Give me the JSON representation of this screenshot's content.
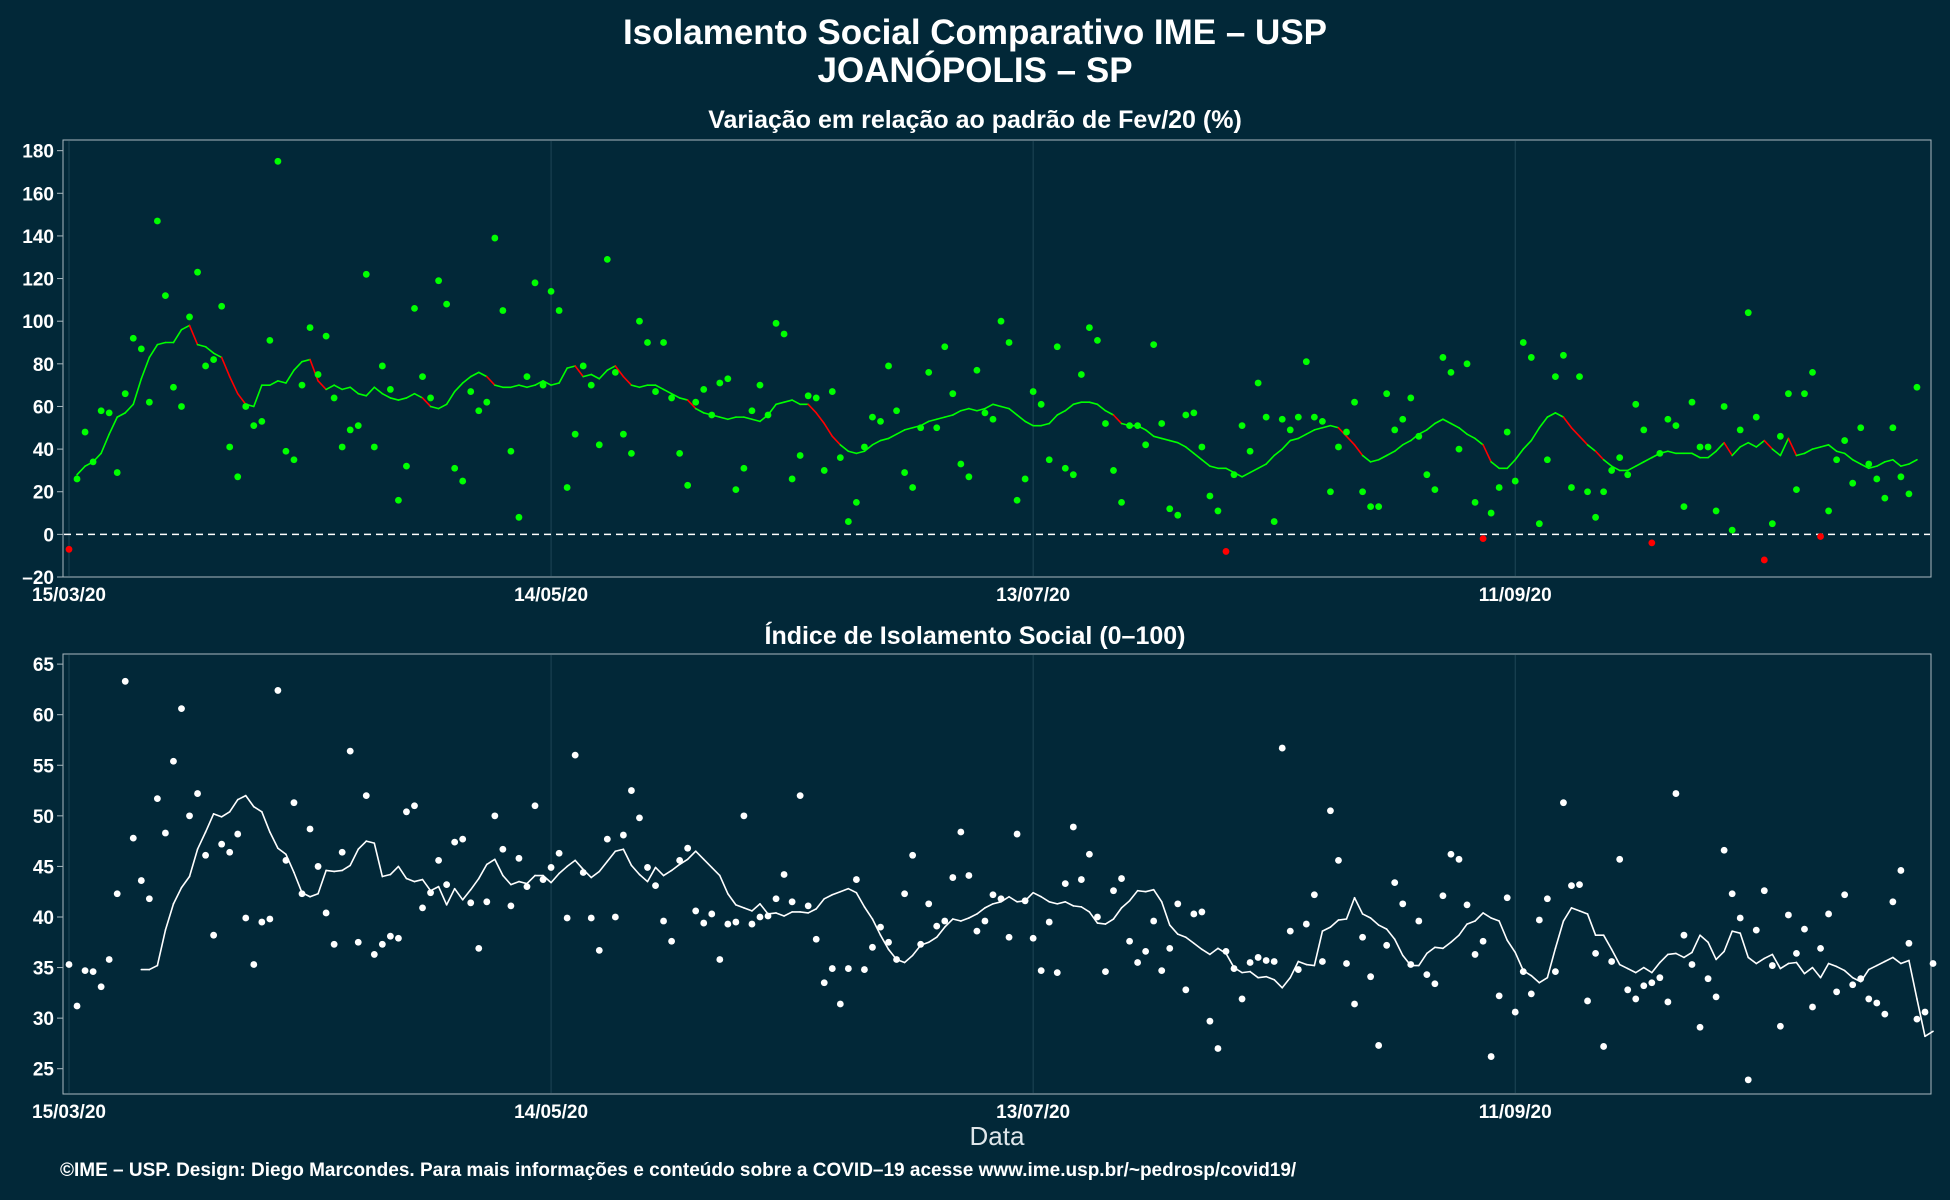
{
  "title": "Isolamento Social Comparativo IME – USP",
  "subtitle": "JOANÓPOLIS – SP",
  "xlabel": "Data",
  "caption": "©IME – USP. Design: Diego Marcondes. Para mais informações e conteúdo sobre a COVID–19 acesse www.ime.usp.br/~pedrosp/covid19/",
  "colors": {
    "background": "#022838",
    "grid": "#1f4656",
    "panel_border": "#a9b8bf",
    "green": "#00ff00",
    "red": "#ff0000",
    "white": "#ffffff"
  },
  "chart_data": [
    {
      "type": "scatter",
      "title": "Variação em relação ao padrão de Fev/20 (%)",
      "xlabel": "",
      "ylabel": "",
      "x_start": "2020-03-15",
      "x_end": "2020-11-01",
      "ylim": [
        -20,
        185
      ],
      "y_ticks": [
        -20,
        0,
        20,
        40,
        60,
        80,
        100,
        120,
        140,
        160,
        180
      ],
      "y_tick_labels": [
        "–20",
        "0",
        "20",
        "40",
        "60",
        "80",
        "100",
        "120",
        "140",
        "160",
        "180"
      ],
      "x_ticks": [
        "2020-03-15",
        "2020-05-14",
        "2020-07-13",
        "2020-09-11"
      ],
      "x_tick_labels": [
        "15/03/20",
        "14/05/20",
        "13/07/20",
        "11/09/20"
      ],
      "reference_line": 0,
      "grid": "vertical lines at x ticks",
      "series": [
        {
          "kind": "daily points",
          "color_rule": "green when ≥ 0, red when < 0",
          "values": [
            -7,
            26,
            48,
            34,
            58,
            57,
            29,
            66,
            92,
            87,
            62,
            147,
            112,
            69,
            60,
            102,
            123,
            79,
            82,
            107,
            41,
            27,
            60,
            51,
            53,
            91,
            175,
            39,
            35,
            70,
            97,
            75,
            93,
            64,
            41,
            49,
            51,
            122,
            41,
            79,
            68,
            16,
            32,
            106,
            74,
            64,
            119,
            108,
            31,
            25,
            67,
            58,
            62,
            139,
            105,
            39,
            8,
            74,
            118,
            70,
            114,
            105,
            22,
            47,
            79,
            70,
            42,
            129,
            76,
            47,
            38,
            100,
            90,
            67,
            90,
            64,
            38,
            23,
            62,
            68,
            56,
            71,
            73,
            21,
            31,
            58,
            70,
            56,
            99,
            94,
            26,
            37,
            65,
            64,
            30,
            67,
            36,
            6,
            15,
            41,
            55,
            53,
            79,
            58,
            29,
            22,
            50,
            76,
            50,
            88,
            66,
            33,
            27,
            77,
            57,
            54,
            100,
            90,
            16,
            26,
            67,
            61,
            35,
            88,
            31,
            28,
            75,
            97,
            91,
            52,
            30,
            15,
            51,
            51,
            42,
            89,
            52,
            12,
            9,
            56,
            57,
            41,
            18,
            11,
            -8,
            28,
            51,
            39,
            71,
            55,
            6,
            54,
            49,
            55,
            81,
            55,
            53,
            20,
            41,
            48,
            62,
            20,
            13,
            13,
            66,
            49,
            54,
            64,
            46,
            28,
            21,
            83,
            76,
            40,
            80,
            15,
            -2,
            10,
            22,
            48,
            25,
            90,
            83,
            5,
            35,
            74,
            84,
            22,
            74,
            20,
            8,
            20,
            30,
            36,
            28,
            61,
            49,
            -4,
            38,
            54,
            51,
            13,
            62,
            41,
            41,
            11,
            60,
            2,
            49,
            104,
            55,
            -12,
            5,
            46,
            66,
            21,
            66,
            76,
            -1,
            11,
            35,
            44,
            24,
            50,
            33,
            26,
            17,
            50,
            27,
            19,
            69
          ]
        },
        {
          "kind": "7-day moving average line",
          "color_rule": "green, red on a downward move",
          "values": [
            28,
            32,
            34,
            38,
            47,
            55,
            57,
            61,
            73,
            83,
            89,
            90,
            90,
            96,
            98,
            89,
            88,
            85,
            83,
            74,
            66,
            61,
            60,
            70,
            70,
            72,
            71,
            77,
            81,
            82,
            72,
            68,
            70,
            68,
            69,
            66,
            65,
            69,
            66,
            64,
            63,
            64,
            66,
            64,
            60,
            59,
            61,
            67,
            71,
            74,
            76,
            74,
            70,
            69,
            69,
            70,
            69,
            70,
            72,
            70,
            71,
            78,
            79,
            74,
            75,
            73,
            77,
            79,
            74,
            70,
            69,
            70,
            70,
            68,
            66,
            64,
            63,
            59,
            57,
            56,
            55,
            54,
            55,
            55,
            54,
            53,
            56,
            61,
            62,
            63,
            61,
            61,
            57,
            52,
            46,
            42,
            39,
            38,
            39,
            42,
            44,
            45,
            47,
            49,
            50,
            51,
            53,
            54,
            55,
            56,
            58,
            59,
            58,
            59,
            61,
            60,
            59,
            56,
            53,
            51,
            51,
            52,
            56,
            58,
            61,
            62,
            62,
            61,
            58,
            56,
            52,
            51,
            51,
            49,
            46,
            45,
            44,
            43,
            41,
            38,
            35,
            32,
            31,
            31,
            29,
            27,
            29,
            31,
            33,
            37,
            40,
            44,
            45,
            47,
            49,
            50,
            51,
            50,
            46,
            42,
            37,
            34,
            35,
            37,
            39,
            42,
            44,
            47,
            49,
            52,
            54,
            52,
            50,
            47,
            45,
            42,
            34,
            31,
            31,
            35,
            40,
            44,
            50,
            55,
            57,
            55,
            50,
            46,
            42,
            39,
            35,
            32,
            30,
            30,
            32,
            34,
            36,
            38,
            39,
            38,
            38,
            38,
            36,
            36,
            39,
            43,
            37,
            41,
            43,
            41,
            44,
            40,
            37,
            45,
            37,
            38,
            40,
            41,
            42,
            39,
            38,
            35,
            33,
            31,
            32,
            34,
            35,
            32,
            33,
            35
          ]
        }
      ]
    },
    {
      "type": "scatter",
      "title": "Índice de Isolamento Social (0–100)",
      "xlabel": "Data",
      "ylabel": "",
      "x_start": "2020-03-15",
      "x_end": "2020-11-01",
      "ylim": [
        22.5,
        66
      ],
      "y_ticks": [
        25,
        30,
        35,
        40,
        45,
        50,
        55,
        60,
        65
      ],
      "y_tick_labels": [
        "25",
        "30",
        "35",
        "40",
        "45",
        "50",
        "55",
        "60",
        "65"
      ],
      "x_ticks": [
        "2020-03-15",
        "2020-05-14",
        "2020-07-13",
        "2020-09-11"
      ],
      "x_tick_labels": [
        "15/03/20",
        "14/05/20",
        "13/07/20",
        "11/09/20"
      ],
      "grid": "vertical lines at x ticks",
      "series": [
        {
          "kind": "daily points",
          "color": "white",
          "values": [
            35.3,
            31.2,
            34.7,
            34.6,
            33.1,
            35.8,
            42.3,
            63.3,
            47.8,
            43.6,
            41.8,
            51.7,
            48.3,
            55.4,
            60.6,
            50.0,
            52.2,
            46.1,
            38.2,
            47.2,
            46.4,
            48.2,
            39.9,
            35.3,
            39.5,
            39.8,
            62.4,
            45.6,
            51.3,
            42.3,
            48.7,
            45.0,
            40.4,
            37.3,
            46.4,
            56.4,
            37.5,
            52.0,
            36.3,
            37.3,
            38.1,
            37.9,
            50.4,
            51.0,
            40.9,
            42.4,
            45.6,
            43.2,
            47.4,
            47.7,
            41.4,
            36.9,
            41.5,
            50.0,
            46.7,
            41.1,
            45.8,
            43.0,
            51.0,
            43.7,
            44.9,
            46.3,
            39.9,
            56.0,
            44.4,
            39.9,
            36.7,
            47.7,
            40.0,
            48.1,
            52.5,
            49.8,
            44.9,
            43.1,
            39.6,
            37.6,
            45.6,
            46.8,
            40.6,
            39.4,
            40.3,
            35.8,
            39.3,
            39.5,
            50.0,
            39.3,
            40.0,
            40.1,
            41.8,
            44.2,
            41.5,
            52.0,
            41.1,
            37.8,
            33.5,
            34.9,
            31.4,
            34.9,
            43.7,
            34.8,
            37.0,
            39.0,
            37.5,
            35.8,
            42.3,
            46.1,
            37.3,
            41.3,
            39.1,
            39.6,
            43.9,
            48.4,
            44.1,
            38.6,
            39.6,
            42.2,
            41.8,
            38.0,
            48.2,
            41.6,
            37.9,
            34.7,
            39.5,
            34.5,
            43.3,
            48.9,
            43.7,
            46.2,
            40.0,
            34.6,
            42.6,
            43.8,
            37.6,
            35.5,
            36.6,
            39.6,
            34.7,
            36.9,
            41.3,
            32.8,
            40.3,
            40.5,
            29.7,
            27.0,
            36.6,
            34.9,
            31.9,
            35.5,
            36.0,
            35.7,
            35.6,
            56.7,
            38.6,
            34.8,
            39.3,
            42.2,
            35.6,
            50.5,
            45.6,
            35.4,
            31.4,
            38.0,
            34.1,
            27.3,
            37.2,
            43.4,
            41.3,
            35.3,
            39.6,
            34.3,
            33.4,
            42.1,
            46.2,
            45.7,
            41.2,
            36.3,
            37.6,
            26.2,
            32.2,
            41.9,
            30.6,
            34.6,
            32.4,
            39.7,
            41.8,
            34.6,
            51.3,
            43.1,
            43.2,
            31.7,
            36.4,
            27.2,
            35.6,
            45.7,
            32.8,
            31.9,
            33.2,
            33.5,
            34.0,
            31.6,
            52.2,
            38.2,
            35.3,
            29.1,
            33.9,
            32.1,
            46.6,
            42.3,
            39.9,
            23.9,
            38.7,
            42.6,
            35.2,
            29.2,
            40.2,
            36.4,
            38.8,
            31.1,
            36.9,
            40.3,
            32.6,
            42.2,
            33.3,
            33.9,
            31.9,
            31.5,
            30.4,
            41.5,
            44.6,
            37.4,
            29.9,
            30.6,
            35.4
          ]
        },
        {
          "kind": "7-day moving average line",
          "color": "white",
          "values": [
            34.8,
            34.8,
            35.2,
            38.7,
            41.3,
            42.9,
            44.0,
            46.7,
            48.4,
            50.2,
            49.9,
            50.4,
            51.6,
            52.0,
            50.9,
            50.4,
            48.4,
            46.8,
            46.2,
            44.4,
            42.4,
            42.0,
            42.3,
            44.6,
            44.5,
            44.6,
            45.1,
            46.7,
            47.5,
            47.3,
            44.0,
            44.2,
            45.0,
            43.8,
            43.5,
            43.7,
            42.6,
            43.0,
            41.2,
            42.8,
            41.7,
            42.7,
            43.8,
            45.2,
            45.7,
            44.1,
            43.2,
            43.5,
            43.3,
            44.1,
            44.1,
            43.4,
            44.3,
            45.0,
            45.6,
            44.7,
            43.9,
            44.5,
            45.5,
            46.5,
            46.7,
            45.1,
            44.2,
            43.5,
            44.9,
            44.1,
            44.6,
            45.2,
            45.7,
            46.5,
            45.7,
            44.9,
            44.1,
            42.3,
            41.2,
            40.9,
            40.6,
            41.3,
            40.3,
            40.4,
            40.1,
            40.5,
            40.5,
            40.4,
            40.8,
            41.8,
            42.2,
            42.5,
            42.8,
            42.4,
            41.0,
            39.8,
            38.2,
            36.8,
            35.8,
            35.5,
            36.2,
            37.2,
            37.5,
            38.0,
            39.0,
            39.8,
            39.6,
            39.9,
            40.3,
            40.9,
            41.3,
            41.5,
            42.0,
            41.5,
            41.6,
            42.4,
            42.0,
            41.5,
            41.3,
            41.5,
            41.1,
            41.0,
            40.5,
            39.4,
            39.3,
            39.8,
            40.9,
            41.6,
            42.6,
            42.5,
            42.7,
            41.5,
            39.2,
            38.3,
            38.0,
            37.4,
            36.8,
            36.3,
            36.9,
            36.4,
            35.0,
            34.5,
            34.6,
            34.0,
            34.1,
            33.8,
            33.0,
            34.0,
            35.6,
            35.3,
            35.2,
            38.6,
            39.0,
            39.7,
            39.8,
            41.9,
            40.3,
            39.9,
            39.2,
            38.8,
            37.8,
            36.2,
            35.2,
            35.2,
            36.4,
            37.0,
            36.9,
            37.5,
            38.2,
            39.3,
            39.6,
            40.4,
            39.9,
            39.6,
            37.7,
            36.5,
            34.7,
            34.2,
            33.5,
            34.0,
            36.9,
            39.6,
            40.9,
            40.6,
            40.3,
            38.2,
            38.2,
            36.8,
            35.3,
            34.9,
            34.5,
            35.0,
            34.5,
            35.5,
            36.3,
            36.4,
            36.0,
            36.5,
            38.2,
            37.5,
            35.8,
            36.6,
            38.6,
            38.4,
            36.0,
            35.4,
            35.9,
            36.3,
            34.9,
            35.4,
            35.5,
            34.4,
            35.0,
            34.0,
            35.4,
            35.1,
            34.7,
            34.0,
            33.6,
            34.8,
            35.2,
            35.6,
            36.0,
            35.4,
            35.7,
            31.9,
            28.2,
            28.7
          ]
        }
      ]
    }
  ]
}
